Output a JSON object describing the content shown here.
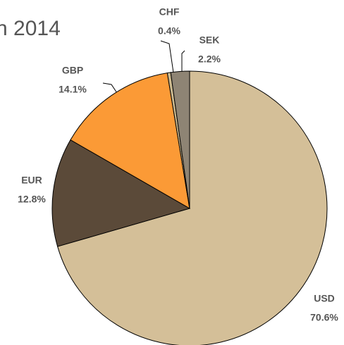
{
  "chart_data": {
    "type": "pie",
    "title": "n 2014",
    "categories": [
      "USD",
      "EUR",
      "GBP",
      "CHF",
      "SEK"
    ],
    "values": [
      70.6,
      12.8,
      14.1,
      0.4,
      2.2
    ],
    "value_labels": [
      "70.6%",
      "12.8%",
      "14.1%",
      "0.4%",
      "2.2%"
    ],
    "colors": [
      "#d4bf98",
      "#5b4a39",
      "#fb9a36",
      "#cbb98f",
      "#8e8474"
    ]
  }
}
